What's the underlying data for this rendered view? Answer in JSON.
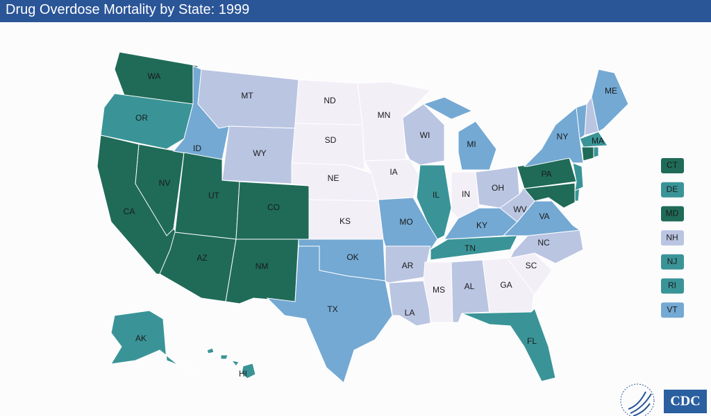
{
  "title": "Drug Overdose Mortality by State: 1999",
  "logo": "CDC",
  "states": [
    {
      "label": "WA",
      "color": "#1f6b58"
    },
    {
      "label": "OR",
      "color": "#3a9497"
    },
    {
      "label": "CA",
      "color": "#1f6b58"
    },
    {
      "label": "NV",
      "color": "#1f6b58"
    },
    {
      "label": "ID",
      "color": "#74a9d3"
    },
    {
      "label": "MT",
      "color": "#bac5e2"
    },
    {
      "label": "WY",
      "color": "#bac5e2"
    },
    {
      "label": "UT",
      "color": "#1f6b58"
    },
    {
      "label": "AZ",
      "color": "#1f6b58"
    },
    {
      "label": "CO",
      "color": "#1f6b58"
    },
    {
      "label": "NM",
      "color": "#1f6b58"
    },
    {
      "label": "ND",
      "color": "#f3eff7"
    },
    {
      "label": "SD",
      "color": "#f3eff7"
    },
    {
      "label": "NE",
      "color": "#f3eff7"
    },
    {
      "label": "KS",
      "color": "#f3eff7"
    },
    {
      "label": "OK",
      "color": "#74a9d3"
    },
    {
      "label": "TX",
      "color": "#74a9d3"
    },
    {
      "label": "MN",
      "color": "#f3eff7"
    },
    {
      "label": "IA",
      "color": "#f3eff7"
    },
    {
      "label": "MO",
      "color": "#74a9d3"
    },
    {
      "label": "AR",
      "color": "#bac5e2"
    },
    {
      "label": "LA",
      "color": "#bac5e2"
    },
    {
      "label": "WI",
      "color": "#bac5e2"
    },
    {
      "label": "IL",
      "color": "#3a9497"
    },
    {
      "label": "MI",
      "color": "#74a9d3"
    },
    {
      "label": "IN",
      "color": "#f3eff7"
    },
    {
      "label": "OH",
      "color": "#bac5e2"
    },
    {
      "label": "KY",
      "color": "#74a9d3"
    },
    {
      "label": "TN",
      "color": "#3a9497"
    },
    {
      "label": "MS",
      "color": "#f3eff7"
    },
    {
      "label": "AL",
      "color": "#bac5e2"
    },
    {
      "label": "GA",
      "color": "#f3eff7"
    },
    {
      "label": "FL",
      "color": "#3a9497"
    },
    {
      "label": "SC",
      "color": "#f3eff7"
    },
    {
      "label": "NC",
      "color": "#bac5e2"
    },
    {
      "label": "VA",
      "color": "#74a9d3"
    },
    {
      "label": "WV",
      "color": "#bac5e2"
    },
    {
      "label": "PA",
      "color": "#1f6b58"
    },
    {
      "label": "NY",
      "color": "#74a9d3"
    },
    {
      "label": "CT",
      "color": "#1f6b58",
      "inset": true
    },
    {
      "label": "DE",
      "color": "#3a9497",
      "inset": true
    },
    {
      "label": "MD",
      "color": "#1f6b58",
      "inset": true
    },
    {
      "label": "NH",
      "color": "#bac5e2",
      "inset": true
    },
    {
      "label": "NJ",
      "color": "#3a9497",
      "inset": true
    },
    {
      "label": "RI",
      "color": "#3a9497",
      "inset": true
    },
    {
      "label": "VT",
      "color": "#74a9d3",
      "inset": true
    },
    {
      "label": "ME",
      "color": "#74a9d3"
    },
    {
      "label": "MA",
      "color": "#3a9497"
    },
    {
      "label": "AK",
      "color": "#3a9497"
    },
    {
      "label": "HI",
      "color": "#3a9497"
    }
  ]
}
